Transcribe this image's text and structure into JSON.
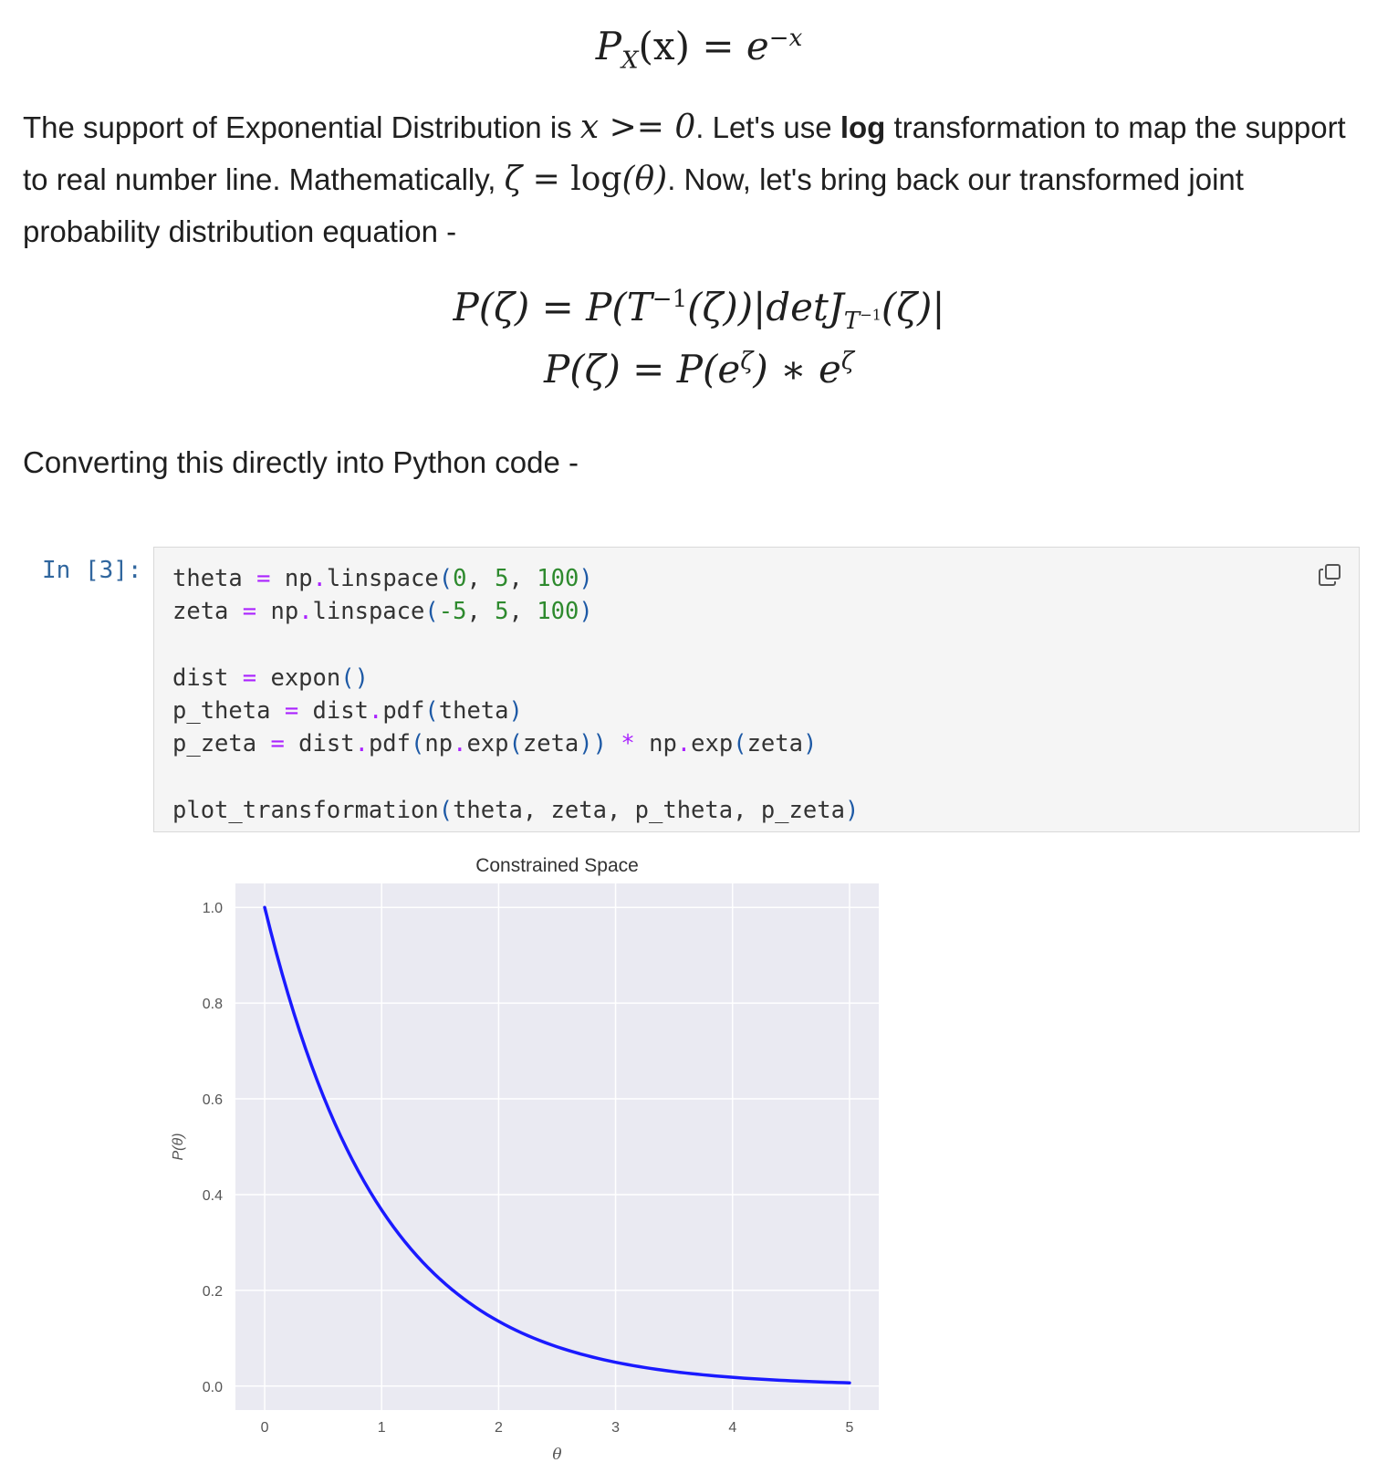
{
  "equation_top": {
    "lhs": "P",
    "sub": "X",
    "arg": "(x)",
    "eq": "=",
    "base": "e",
    "exp": "−x"
  },
  "paragraph1": {
    "t1": "The support of Exponential Distribution is ",
    "m1": "x >= 0",
    "t2": ". Let's use ",
    "bold": "log",
    "t3": " transformation to map the support to real number line. Mathematically, ",
    "m2_var": "ζ",
    "m2_eq": " = ",
    "m2_fn": "log",
    "m2_arg": "(θ)",
    "t4": ". Now, let's bring back our transformed joint probability distribution equation -"
  },
  "equation_jacobian": {
    "lhs": "P(ζ) = P(T",
    "sup1": "−1",
    "mid": "(ζ))|detJ",
    "sub1": "T",
    "subsup": "−1",
    "end": "(ζ)|"
  },
  "equation_simplified": {
    "lhs": "P(ζ) = P(e",
    "sup1": "ζ",
    "mid": ") ∗ e",
    "sup2": "ζ"
  },
  "paragraph2": "Converting this directly into Python code -",
  "cell": {
    "prompt": "In [3]:",
    "copy_icon": "copy-icon"
  },
  "chart_data": {
    "type": "line",
    "title": "Constrained Space",
    "xlabel": "θ",
    "ylabel": "P(θ)",
    "xlim": [
      -0.25,
      5.25
    ],
    "ylim": [
      -0.05,
      1.05
    ],
    "x_ticks": [
      0,
      1,
      2,
      3,
      4,
      5
    ],
    "y_ticks": [
      0.0,
      0.2,
      0.4,
      0.6,
      0.8,
      1.0
    ],
    "y_tick_labels": [
      "0.0",
      "0.2",
      "0.4",
      "0.6",
      "0.8",
      "1.0"
    ],
    "grid": true,
    "series": [
      {
        "function": "exp(-x)",
        "x": [
          0,
          0.25,
          0.5,
          0.75,
          1,
          1.25,
          1.5,
          1.75,
          2,
          2.5,
          3,
          3.5,
          4,
          4.5,
          5
        ],
        "y": [
          1.0,
          0.779,
          0.607,
          0.472,
          0.368,
          0.287,
          0.223,
          0.174,
          0.135,
          0.082,
          0.05,
          0.03,
          0.018,
          0.011,
          0.007
        ],
        "color": "#1a1aff"
      }
    ],
    "background": "#eaeaf2"
  }
}
